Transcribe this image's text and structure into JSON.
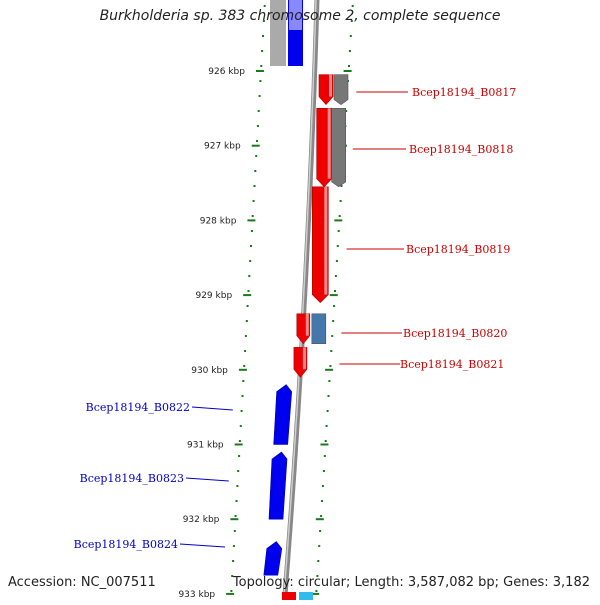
{
  "title": "Burkholderia sp. 383 chromosome 2, complete sequence",
  "accession": "Accession: NC_007511",
  "meta": "Topology: circular; Length: 3,587,082 bp; Genes: 3,182",
  "ticks": [
    "926 kbp",
    "927 kbp",
    "928 kbp",
    "929 kbp",
    "930 kbp",
    "931 kbp",
    "932 kbp",
    "933 kbp"
  ],
  "colors": {
    "forward": "#ee0000",
    "reverse": "#0000ee",
    "label_forward": "#cc0000",
    "label_reverse": "#0000cc",
    "gray_feature": "#777777",
    "steel_feature": "#4477aa",
    "tick_green": "#1a7a1a",
    "axis": "#888888"
  },
  "genes_forward": [
    {
      "label": "Bcep18194_B0817",
      "start_kbp": 926.05,
      "end_kbp": 926.45
    },
    {
      "label": "Bcep18194_B0818",
      "start_kbp": 926.5,
      "end_kbp": 927.55
    },
    {
      "label": "Bcep18194_B0819",
      "start_kbp": 927.55,
      "end_kbp": 929.1
    },
    {
      "label": "Bcep18194_B0820",
      "start_kbp": 929.25,
      "end_kbp": 929.65
    },
    {
      "label": "Bcep18194_B0821",
      "start_kbp": 929.7,
      "end_kbp": 930.1
    }
  ],
  "genes_reverse": [
    {
      "label": "Bcep18194_B0822",
      "start_kbp": 930.2,
      "end_kbp": 931.0
    },
    {
      "label": "Bcep18194_B0823",
      "start_kbp": 931.1,
      "end_kbp": 932.0
    },
    {
      "label": "Bcep18194_B0824",
      "start_kbp": 932.3,
      "end_kbp": 932.75
    }
  ],
  "other_features": [
    {
      "kind": "gray",
      "start_kbp": 926.05,
      "end_kbp": 926.45
    },
    {
      "kind": "gray",
      "start_kbp": 926.5,
      "end_kbp": 927.55
    },
    {
      "kind": "steel",
      "start_kbp": 929.25,
      "end_kbp": 929.65
    }
  ]
}
